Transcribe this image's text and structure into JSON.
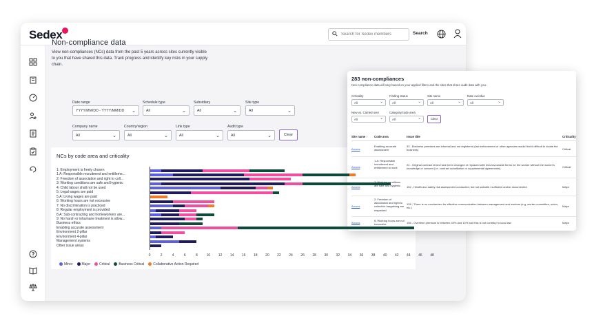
{
  "app": {
    "logo": "Sedex"
  },
  "header": {
    "search_placeholder": "Search for Sedex members",
    "search_label": "Search"
  },
  "page": {
    "title": "Non-compliance data",
    "description": "View non-compliances (NCs) data from the past 5 years across sites currently visible to you that have shared this data. Track progress and identify key risks in your supply chain."
  },
  "filters": {
    "date_range": {
      "label": "Date range",
      "value": "YYYY/MM/DD - YYYY/MM/DD"
    },
    "schedule_type": {
      "label": "Schedule type",
      "value": "All"
    },
    "subsidiary": {
      "label": "Subsidiary",
      "value": "All"
    },
    "site_type": {
      "label": "Site type",
      "value": "All"
    },
    "company_name": {
      "label": "Company name",
      "value": "All"
    },
    "country_region": {
      "label": "Country/region",
      "value": "All"
    },
    "link_type": {
      "label": "Link type",
      "value": "All"
    },
    "audit_type": {
      "label": "Audit type",
      "value": "All"
    },
    "clear_label": "Clear"
  },
  "chart_data": {
    "type": "bar",
    "orientation": "horizontal",
    "stacked": true,
    "title": "NCs by code area and criticality",
    "categories": [
      "1: Employment is freely chosen",
      "1.A: Responsible recruitment and entitleme...",
      "2: Freedom of association and right to coll...",
      "3: Working conditions are safe and hygienic",
      "4: Child labour shall not be used",
      "5: Legal wages are paid",
      "5.A: Living wages are paid",
      "6: Working hours are not excessive",
      "7: No discrimination is practiced",
      "8: Regular employment is provided",
      "8.A: Sub-contracting and homeworkers are...",
      "9: No harsh or inhumane treatment is allow...",
      "Business ethics",
      "Enabling accurate assessment",
      "Environment 2-pillar",
      "Environment 4-pillar",
      "Management systems",
      "Other issue areas"
    ],
    "series": [
      {
        "name": "Minor",
        "color": "#5b5fe0",
        "values": [
          2,
          4,
          0,
          2,
          12,
          0,
          0,
          0,
          4,
          1,
          2,
          0,
          0,
          2,
          0,
          1,
          5,
          0
        ]
      },
      {
        "name": "Major",
        "color": "#1e1a5c",
        "values": [
          7,
          12,
          17,
          21,
          6,
          7,
          0,
          4,
          2,
          4,
          3,
          6,
          5,
          0,
          2,
          3,
          3,
          2
        ]
      },
      {
        "name": "Critical",
        "color": "#f04e9e",
        "values": [
          8,
          10,
          7,
          3,
          2,
          14,
          0,
          7,
          4,
          3,
          3,
          2,
          0,
          13,
          4,
          0,
          0,
          0
        ]
      },
      {
        "name": "Business Critical",
        "color": "#0d4a3c",
        "values": [
          6,
          8,
          0,
          15,
          0,
          1,
          0,
          0,
          0,
          0,
          3,
          1,
          4,
          30,
          0,
          0,
          0,
          0
        ]
      },
      {
        "name": "Collaborative Action Required",
        "color": "#f07a2a",
        "values": [
          0,
          1,
          0,
          0,
          1,
          0,
          3,
          0,
          1,
          0,
          0,
          0,
          0,
          0,
          0,
          0,
          0,
          0
        ]
      }
    ],
    "xticks": [
      0,
      2,
      4,
      6,
      8,
      10,
      12,
      14,
      16,
      18,
      20,
      22,
      24,
      26,
      28,
      30,
      32,
      34,
      36,
      38,
      40,
      42,
      44,
      46,
      48
    ],
    "xlim": [
      0,
      48
    ],
    "legend_position": "bottom-left"
  },
  "panel": {
    "title": "283 non-compliances",
    "subtitle": "Non-compliance data will vary based on your applied filters and the sites that share audit data with you.",
    "filters": [
      {
        "label": "Criticality",
        "value": "All"
      },
      {
        "label": "Finding status",
        "value": "All"
      },
      {
        "label": "Site name",
        "value": "All"
      },
      {
        "label": "Date overdue",
        "value": "All"
      },
      {
        "label": "New vs. Carried over",
        "value": "All"
      },
      {
        "label": "Category/code area",
        "value": "All"
      }
    ],
    "clear_label": "Clear",
    "columns": [
      "Site name",
      "Code area",
      "Issue title",
      "Criticality"
    ],
    "rows": [
      {
        "site": "Arcons",
        "code": "Enabling accurate assessment",
        "issue": "33 - Business premises are informal and not registered (law enforcement or other agencies would find it difficult to locate the business)",
        "crit": "Critical"
      },
      {
        "site": "Arcons",
        "code": "1.A: Responsible recruitment and entitlement to work",
        "issue": "24 - Original contract terms have been changed or replaced with less favourable terms for the worker without the worker's knowledge or consent (i.e. contract substitution or supplemental agreements)",
        "crit": "Critical"
      },
      {
        "site": "Arcons",
        "code": "3: Working conditions are safe and hygienic",
        "issue": "152 - Health and safety risk assessment conducted, but not suitable / sufficient and/or documented",
        "crit": "Major"
      },
      {
        "site": "Arcons",
        "code": "2: Freedom of association and right to collective bargaining are respected",
        "issue": "128 - There is no mechanism for effective communication between management and workers (e.g. worker committee, union, etc.)",
        "crit": "Major"
      },
      {
        "site": "Arcons",
        "code": "6: Working hours are not excessive",
        "issue": "156 - Overtime premium is between 40% and 10% and this is not contrary to local law",
        "crit": "Major"
      }
    ]
  }
}
